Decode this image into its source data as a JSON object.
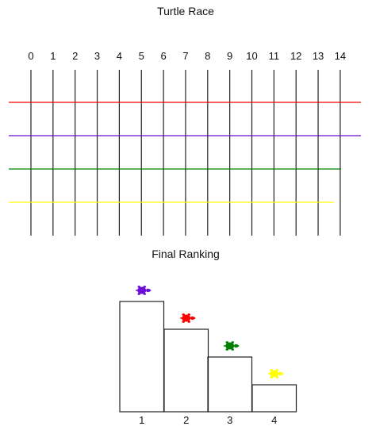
{
  "race": {
    "title": "Turtle Race",
    "ticks": [
      "0",
      "1",
      "2",
      "3",
      "4",
      "5",
      "6",
      "7",
      "8",
      "9",
      "10",
      "11",
      "12",
      "13",
      "14"
    ],
    "tracks": [
      {
        "color": "#ff0000",
        "color_name": "red"
      },
      {
        "color": "#6a0dd9",
        "color_name": "purple"
      },
      {
        "color": "#008000",
        "color_name": "green"
      },
      {
        "color": "#ffff00",
        "color_name": "yellow"
      }
    ]
  },
  "ranking": {
    "title": "Final Ranking",
    "places": [
      {
        "label": "1",
        "turtle_color": "#6a0dd9",
        "turtle_icon": "turtle-icon"
      },
      {
        "label": "2",
        "turtle_color": "#ff0000",
        "turtle_icon": "turtle-icon"
      },
      {
        "label": "3",
        "turtle_color": "#008000",
        "turtle_icon": "turtle-icon"
      },
      {
        "label": "4",
        "turtle_color": "#ffff00",
        "turtle_icon": "turtle-icon"
      }
    ]
  }
}
